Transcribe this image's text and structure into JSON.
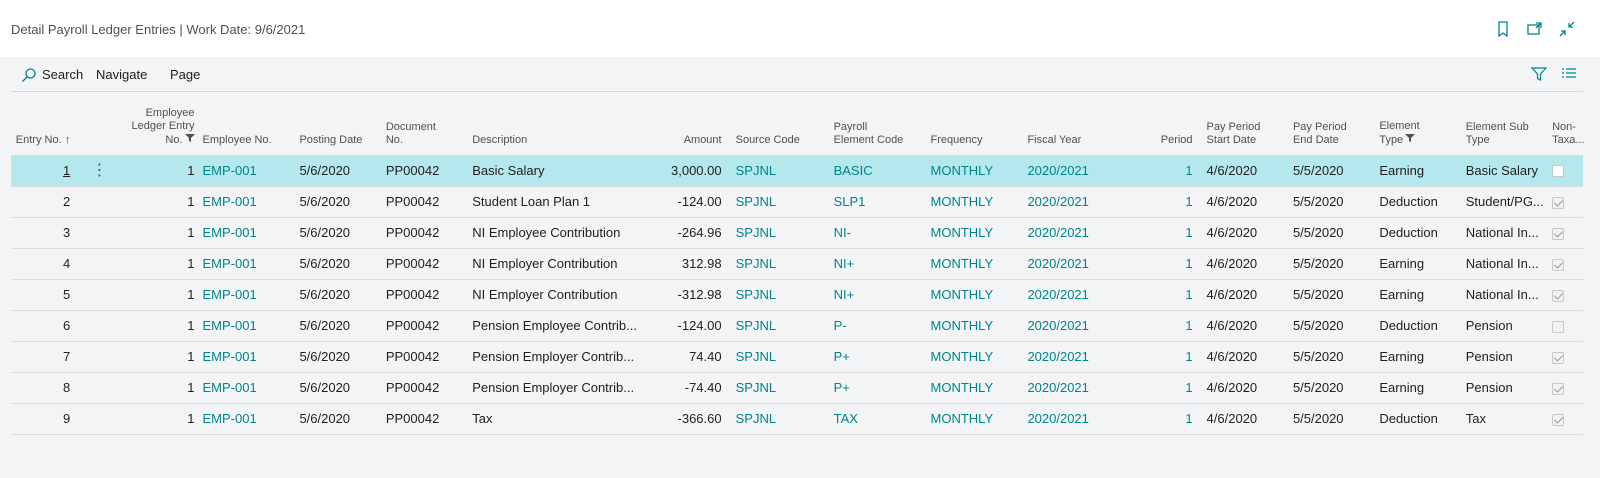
{
  "header": {
    "title": "Detail Payroll Ledger Entries | Work Date: 9/6/2021",
    "icons": [
      "bookmark-icon",
      "open-in-new-window-icon",
      "collapse-icon"
    ]
  },
  "actions": {
    "search": "Search",
    "navigate": "Navigate",
    "page": "Page",
    "icons": [
      "filter-icon",
      "list-view-icon"
    ]
  },
  "columns": {
    "entry_no": "Entry No. ↑",
    "emp_ledger_1": "Employee",
    "emp_ledger_2": "Ledger Entry",
    "emp_ledger_3": "No.",
    "employee_no": "Employee No.",
    "posting_date": "Posting Date",
    "document_no_1": "Document",
    "document_no_2": "No.",
    "description": "Description",
    "amount": "Amount",
    "source_code": "Source Code",
    "payroll_elem_1": "Payroll",
    "payroll_elem_2": "Element Code",
    "frequency": "Frequency",
    "fiscal_year": "Fiscal Year",
    "period": "Period",
    "pp_start_1": "Pay Period",
    "pp_start_2": "Start Date",
    "pp_end_1": "Pay Period",
    "pp_end_2": "End Date",
    "elem_type_1": "Element",
    "elem_type_2": "Type",
    "elem_sub_1": "Element Sub",
    "elem_sub_2": "Type",
    "non_tax_1": "Non-",
    "non_tax_2": "Taxa..."
  },
  "rows": [
    {
      "entry": "1",
      "led": "1",
      "emp": "EMP-001",
      "date": "5/6/2020",
      "doc": "PP00042",
      "desc": "Basic Salary",
      "amount": "3,000.00",
      "src": "SPJNL",
      "code": "BASIC",
      "freq": "MONTHLY",
      "fy": "2020/2021",
      "period": "1",
      "start": "4/6/2020",
      "end": "5/5/2020",
      "type": "Earning",
      "sub": "Basic Salary",
      "nontax": false
    },
    {
      "entry": "2",
      "led": "1",
      "emp": "EMP-001",
      "date": "5/6/2020",
      "doc": "PP00042",
      "desc": "Student Loan Plan 1",
      "amount": "-124.00",
      "src": "SPJNL",
      "code": "SLP1",
      "freq": "MONTHLY",
      "fy": "2020/2021",
      "period": "1",
      "start": "4/6/2020",
      "end": "5/5/2020",
      "type": "Deduction",
      "sub": "Student/PG...",
      "nontax": true
    },
    {
      "entry": "3",
      "led": "1",
      "emp": "EMP-001",
      "date": "5/6/2020",
      "doc": "PP00042",
      "desc": "NI Employee Contribution",
      "amount": "-264.96",
      "src": "SPJNL",
      "code": "NI-",
      "freq": "MONTHLY",
      "fy": "2020/2021",
      "period": "1",
      "start": "4/6/2020",
      "end": "5/5/2020",
      "type": "Deduction",
      "sub": "National In...",
      "nontax": true
    },
    {
      "entry": "4",
      "led": "1",
      "emp": "EMP-001",
      "date": "5/6/2020",
      "doc": "PP00042",
      "desc": "NI Employer Contribution",
      "amount": "312.98",
      "src": "SPJNL",
      "code": "NI+",
      "freq": "MONTHLY",
      "fy": "2020/2021",
      "period": "1",
      "start": "4/6/2020",
      "end": "5/5/2020",
      "type": "Earning",
      "sub": "National In...",
      "nontax": true
    },
    {
      "entry": "5",
      "led": "1",
      "emp": "EMP-001",
      "date": "5/6/2020",
      "doc": "PP00042",
      "desc": "NI Employer Contribution",
      "amount": "-312.98",
      "src": "SPJNL",
      "code": "NI+",
      "freq": "MONTHLY",
      "fy": "2020/2021",
      "period": "1",
      "start": "4/6/2020",
      "end": "5/5/2020",
      "type": "Earning",
      "sub": "National In...",
      "nontax": true
    },
    {
      "entry": "6",
      "led": "1",
      "emp": "EMP-001",
      "date": "5/6/2020",
      "doc": "PP00042",
      "desc": "Pension Employee Contrib...",
      "amount": "-124.00",
      "src": "SPJNL",
      "code": "P-",
      "freq": "MONTHLY",
      "fy": "2020/2021",
      "period": "1",
      "start": "4/6/2020",
      "end": "5/5/2020",
      "type": "Deduction",
      "sub": "Pension",
      "nontax": false
    },
    {
      "entry": "7",
      "led": "1",
      "emp": "EMP-001",
      "date": "5/6/2020",
      "doc": "PP00042",
      "desc": "Pension Employer Contrib...",
      "amount": "74.40",
      "src": "SPJNL",
      "code": "P+",
      "freq": "MONTHLY",
      "fy": "2020/2021",
      "period": "1",
      "start": "4/6/2020",
      "end": "5/5/2020",
      "type": "Earning",
      "sub": "Pension",
      "nontax": true
    },
    {
      "entry": "8",
      "led": "1",
      "emp": "EMP-001",
      "date": "5/6/2020",
      "doc": "PP00042",
      "desc": "Pension Employer Contrib...",
      "amount": "-74.40",
      "src": "SPJNL",
      "code": "P+",
      "freq": "MONTHLY",
      "fy": "2020/2021",
      "period": "1",
      "start": "4/6/2020",
      "end": "5/5/2020",
      "type": "Earning",
      "sub": "Pension",
      "nontax": true
    },
    {
      "entry": "9",
      "led": "1",
      "emp": "EMP-001",
      "date": "5/6/2020",
      "doc": "PP00042",
      "desc": "Tax",
      "amount": "-366.60",
      "src": "SPJNL",
      "code": "TAX",
      "freq": "MONTHLY",
      "fy": "2020/2021",
      "period": "1",
      "start": "4/6/2020",
      "end": "5/5/2020",
      "type": "Deduction",
      "sub": "Tax",
      "nontax": true
    }
  ],
  "colors": {
    "accent": "#00848a",
    "selected_row": "#b5e8ec"
  }
}
